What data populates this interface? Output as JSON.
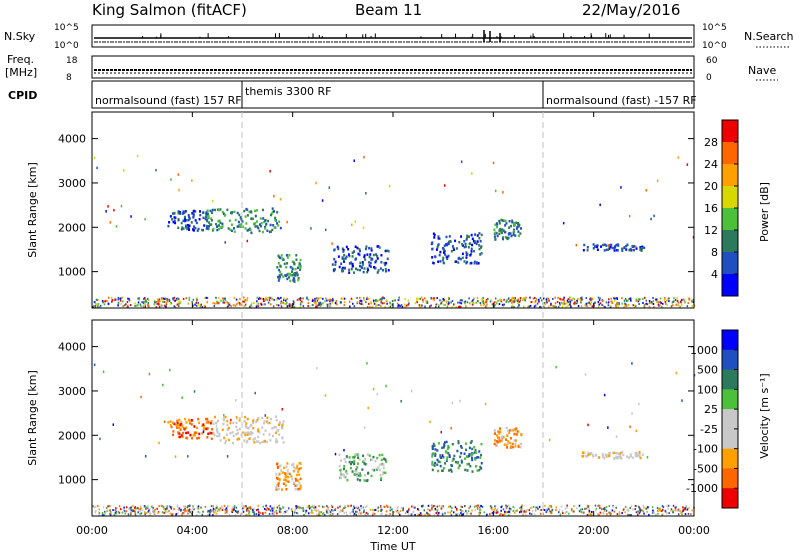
{
  "header": {
    "station": "King Salmon (fitACF)",
    "beam": "Beam 11",
    "date": "22/May/2016"
  },
  "strips": {
    "nsky_label": "N.Sky",
    "nsky_ticks": [
      "10^5",
      "10^0"
    ],
    "nsearch_label": "N.Search",
    "freq_label_1": "Freq.",
    "freq_label_2": "[MHz]",
    "freq_ticks": [
      "18",
      "8"
    ],
    "nave_label": "Nave",
    "nave_ticks": [
      "60",
      "0"
    ],
    "cpid_label": "CPID",
    "cpid_entries": [
      {
        "text": "normalsound (fast) 157 RF",
        "start_hour": 0
      },
      {
        "text": "themis 3300 RF",
        "start_hour": 6
      },
      {
        "text": "normalsound (fast) -157 RF",
        "start_hour": 18
      }
    ]
  },
  "xaxis": {
    "label": "Time UT",
    "ticks": [
      "00:00",
      "04:00",
      "08:00",
      "12:00",
      "16:00",
      "20:00",
      "00:00"
    ],
    "tick_hours": [
      0,
      4,
      8,
      12,
      16,
      20,
      24
    ],
    "range_hours": [
      0,
      24
    ]
  },
  "chart_data": [
    {
      "type": "heatmap",
      "panel": "power",
      "ylabel": "Slant Range [km]",
      "yticks": [
        "4000",
        "3000",
        "2000",
        "1000"
      ],
      "ylim": [
        180,
        4600
      ],
      "colorbar_label": "Power [dB]",
      "colorbar_ticks": [
        "28",
        "24",
        "20",
        "16",
        "12",
        "8",
        "4"
      ],
      "colorbar_range": [
        0,
        32
      ],
      "colors": [
        "#0000ff",
        "#2050c0",
        "#2c7a5c",
        "#4cc03a",
        "#d8d800",
        "#ff9f00",
        "#ff6600",
        "#ee0000"
      ],
      "regions": [
        {
          "t": [
            3.0,
            4.6
          ],
          "r": [
            1950,
            2400
          ],
          "level": 1
        },
        {
          "t": [
            4.5,
            7.5
          ],
          "r": [
            1900,
            2450
          ],
          "level": 2
        },
        {
          "t": [
            7.3,
            8.3
          ],
          "r": [
            800,
            1400
          ],
          "level": 2
        },
        {
          "t": [
            9.5,
            11.8
          ],
          "r": [
            1000,
            1600
          ],
          "level": 1
        },
        {
          "t": [
            13.5,
            15.5
          ],
          "r": [
            1200,
            1900
          ],
          "level": 1
        },
        {
          "t": [
            16.0,
            17.1
          ],
          "r": [
            1750,
            2200
          ],
          "level": 2
        },
        {
          "t": [
            19.5,
            22.0
          ],
          "r": [
            1500,
            1650
          ],
          "level": 1
        }
      ]
    },
    {
      "type": "heatmap",
      "panel": "velocity",
      "ylabel": "Slant Range [km]",
      "yticks": [
        "4000",
        "3000",
        "2000",
        "1000"
      ],
      "ylim": [
        180,
        4600
      ],
      "colorbar_label": "Velocity [m s⁻¹]",
      "colorbar_ticks": [
        "1000",
        "500",
        "100",
        "25",
        "-25",
        "-100",
        "-500",
        "-1000"
      ],
      "colorbar_range": [
        -1250,
        1250
      ],
      "colors": [
        "#ee0000",
        "#ff6600",
        "#ff9f00",
        "#c8c8c8",
        "#c8c8c8",
        "#4cc03a",
        "#2c7a5c",
        "#2050c0",
        "#0000ff"
      ],
      "regions": [
        {
          "t": [
            3.0,
            4.8
          ],
          "r": [
            1950,
            2400
          ],
          "level": 1
        },
        {
          "t": [
            4.8,
            7.6
          ],
          "r": [
            1850,
            2450
          ],
          "level": 3
        },
        {
          "t": [
            7.3,
            8.3
          ],
          "r": [
            800,
            1400
          ],
          "level": 2
        },
        {
          "t": [
            9.8,
            11.7
          ],
          "r": [
            1000,
            1600
          ],
          "level": 5
        },
        {
          "t": [
            13.5,
            15.5
          ],
          "r": [
            1200,
            1900
          ],
          "level": 6
        },
        {
          "t": [
            16.0,
            17.1
          ],
          "r": [
            1750,
            2200
          ],
          "level": 2
        },
        {
          "t": [
            19.5,
            22.0
          ],
          "r": [
            1500,
            1650
          ],
          "level": 3
        }
      ]
    }
  ]
}
